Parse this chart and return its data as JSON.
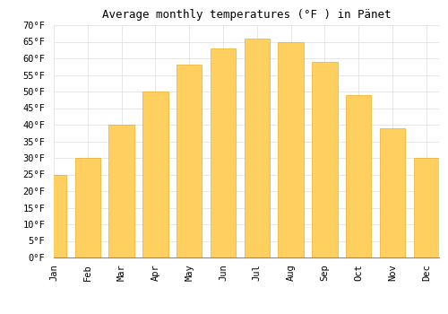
{
  "title": "Average monthly temperatures (°F ) in Pänet",
  "months": [
    "Jan",
    "Feb",
    "Mar",
    "Apr",
    "May",
    "Jun",
    "Jul",
    "Aug",
    "Sep",
    "Oct",
    "Nov",
    "Dec"
  ],
  "values": [
    25,
    30,
    40,
    50,
    58,
    63,
    66,
    65,
    59,
    49,
    39,
    30
  ],
  "bar_color_top": "#FFA500",
  "bar_color_bottom": "#FFD060",
  "bar_edge_color": "#E8A000",
  "background_color": "#FFFFFF",
  "grid_color": "#DDDDDD",
  "ylim": [
    0,
    70
  ],
  "yticks": [
    0,
    5,
    10,
    15,
    20,
    25,
    30,
    35,
    40,
    45,
    50,
    55,
    60,
    65,
    70
  ],
  "title_fontsize": 9,
  "tick_fontsize": 7.5,
  "font_family": "monospace"
}
